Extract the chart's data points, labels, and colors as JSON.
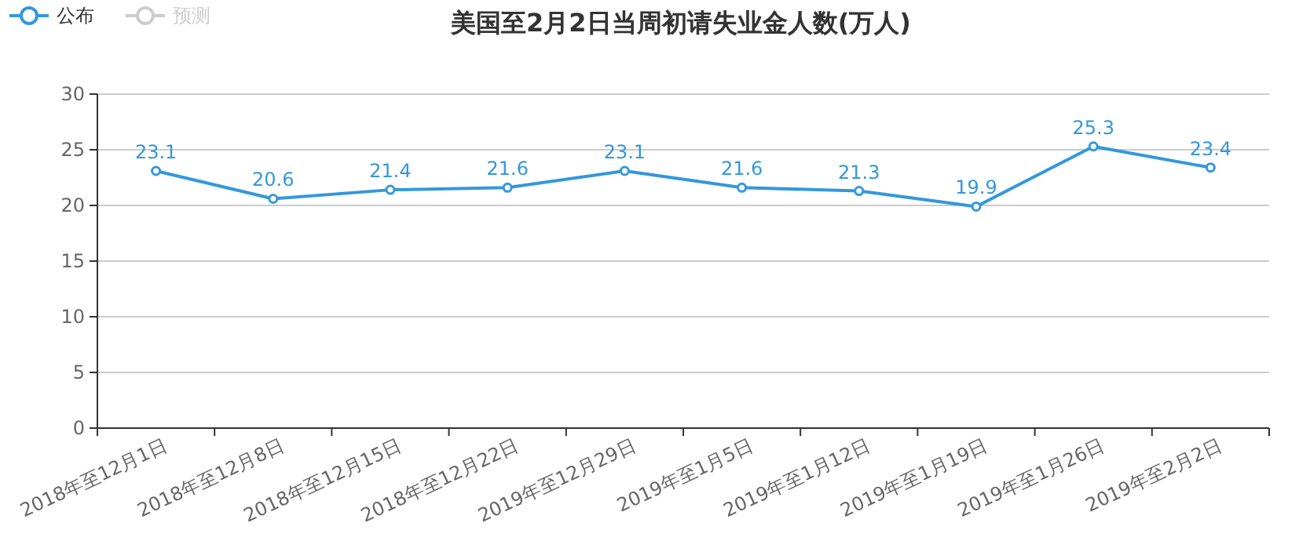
{
  "chart_data": {
    "type": "line",
    "title": "美国至2月2日当周初请失业金人数(万人)",
    "categories": [
      "2018年至12月1日",
      "2018年至12月8日",
      "2018年至12月15日",
      "2018年至12月22日",
      "2019年至12月29日",
      "2019年至1月5日",
      "2019年至1月12日",
      "2019年至1月19日",
      "2019年至1月26日",
      "2019年至2月2日"
    ],
    "series": [
      {
        "name": "公布",
        "color": "#3398db",
        "values": [
          23.1,
          20.6,
          21.4,
          21.6,
          23.1,
          21.6,
          21.3,
          19.9,
          25.3,
          23.4
        ]
      },
      {
        "name": "预测",
        "color": "#cccccc",
        "values": [
          null,
          null,
          null,
          null,
          null,
          null,
          null,
          null,
          null,
          null
        ]
      }
    ],
    "ylim": [
      0,
      30
    ],
    "yticks": [
      0,
      5,
      10,
      15,
      20,
      25,
      30
    ],
    "grid": "y",
    "legend": "top left",
    "marker": "circle",
    "data_labels": true
  }
}
